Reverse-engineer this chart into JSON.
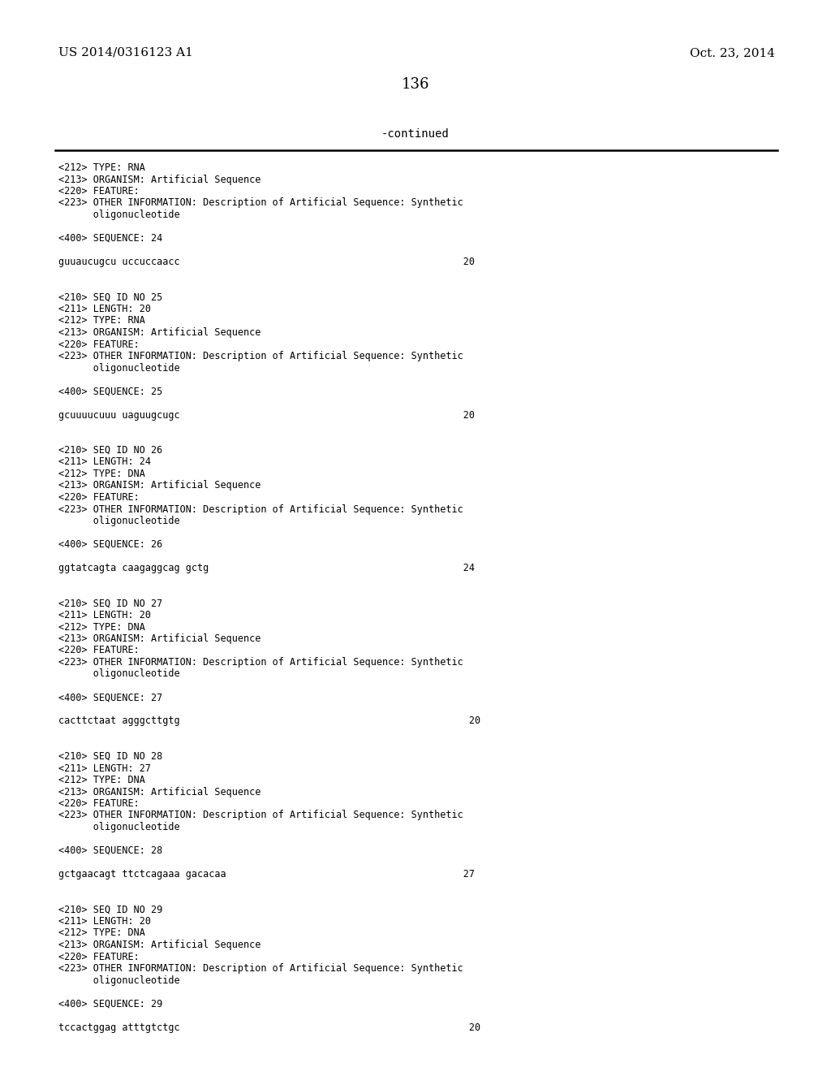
{
  "header_left": "US 2014/0316123 A1",
  "header_right": "Oct. 23, 2014",
  "page_number": "136",
  "continued_label": "-continued",
  "background_color": "#ffffff",
  "text_color": "#000000",
  "header_fontsize": 11,
  "page_num_fontsize": 13,
  "continued_fontsize": 10,
  "content_fontsize": 8.5,
  "content_lines": [
    "<212> TYPE: RNA",
    "<213> ORGANISM: Artificial Sequence",
    "<220> FEATURE:",
    "<223> OTHER INFORMATION: Description of Artificial Sequence: Synthetic",
    "      oligonucleotide",
    "",
    "<400> SEQUENCE: 24",
    "",
    "guuaucugcu uccuccaacc                                                 20",
    "",
    "",
    "<210> SEQ ID NO 25",
    "<211> LENGTH: 20",
    "<212> TYPE: RNA",
    "<213> ORGANISM: Artificial Sequence",
    "<220> FEATURE:",
    "<223> OTHER INFORMATION: Description of Artificial Sequence: Synthetic",
    "      oligonucleotide",
    "",
    "<400> SEQUENCE: 25",
    "",
    "gcuuuucuuu uaguugcugc                                                 20",
    "",
    "",
    "<210> SEQ ID NO 26",
    "<211> LENGTH: 24",
    "<212> TYPE: DNA",
    "<213> ORGANISM: Artificial Sequence",
    "<220> FEATURE:",
    "<223> OTHER INFORMATION: Description of Artificial Sequence: Synthetic",
    "      oligonucleotide",
    "",
    "<400> SEQUENCE: 26",
    "",
    "ggtatcagta caagaggcag gctg                                            24",
    "",
    "",
    "<210> SEQ ID NO 27",
    "<211> LENGTH: 20",
    "<212> TYPE: DNA",
    "<213> ORGANISM: Artificial Sequence",
    "<220> FEATURE:",
    "<223> OTHER INFORMATION: Description of Artificial Sequence: Synthetic",
    "      oligonucleotide",
    "",
    "<400> SEQUENCE: 27",
    "",
    "cacttctaat agggcttgtg                                                  20",
    "",
    "",
    "<210> SEQ ID NO 28",
    "<211> LENGTH: 27",
    "<212> TYPE: DNA",
    "<213> ORGANISM: Artificial Sequence",
    "<220> FEATURE:",
    "<223> OTHER INFORMATION: Description of Artificial Sequence: Synthetic",
    "      oligonucleotide",
    "",
    "<400> SEQUENCE: 28",
    "",
    "gctgaacagt ttctcagaaa gacacaa                                         27",
    "",
    "",
    "<210> SEQ ID NO 29",
    "<211> LENGTH: 20",
    "<212> TYPE: DNA",
    "<213> ORGANISM: Artificial Sequence",
    "<220> FEATURE:",
    "<223> OTHER INFORMATION: Description of Artificial Sequence: Synthetic",
    "      oligonucleotide",
    "",
    "<400> SEQUENCE: 29",
    "",
    "tccactggag atttgtctgc                                                  20"
  ]
}
